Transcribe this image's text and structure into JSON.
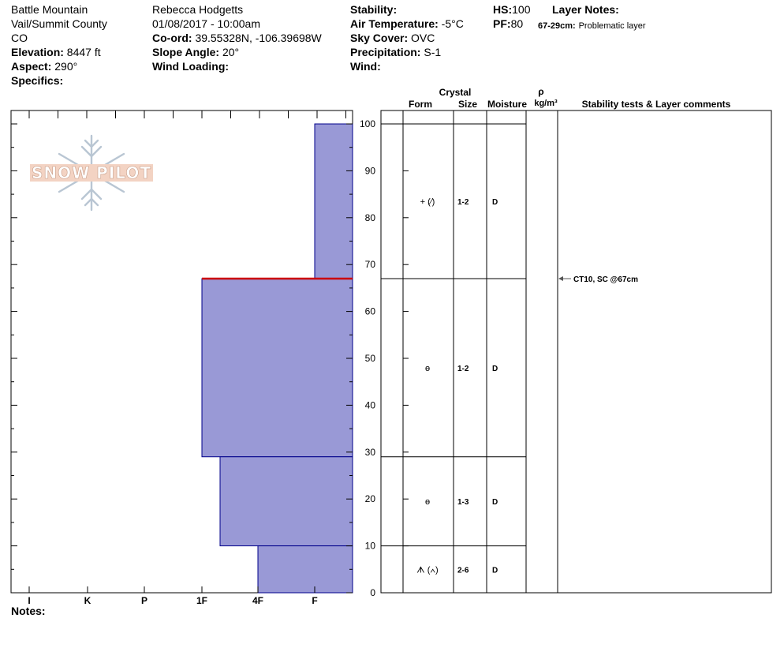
{
  "header": {
    "location": "Battle Mountain",
    "region": "Vail/Summit County",
    "state": "CO",
    "elevation_label": "Elevation:",
    "elevation_value": "8447 ft",
    "aspect_label": "Aspect:",
    "aspect_value": "290°",
    "specifics_label": "Specifics:",
    "observer": "Rebecca Hodgetts",
    "datetime": "01/08/2017 - 10:00am",
    "coord_label": "Co-ord:",
    "coord_value": "39.55328N, -106.39698W",
    "slope_label": "Slope Angle:",
    "slope_value": "20°",
    "wind_loading_label": "Wind Loading:",
    "stability_label": "Stability:",
    "air_temp_label": "Air Temperature:",
    "air_temp_value": "-5°C",
    "sky_cover_label": "Sky Cover:",
    "sky_cover_value": "OVC",
    "precip_label": "Precipitation:",
    "precip_value": "S-1",
    "wind_label": "Wind:",
    "hs_label": "HS:",
    "hs_value": "100",
    "pf_label": "PF:",
    "pf_value": "80",
    "layer_notes_label": "Layer Notes:",
    "layer_note_range": "67-29cm:",
    "layer_note_text": "Problematic layer"
  },
  "logo": {
    "text": "SNOW PILOT",
    "icon": "snowflake-icon"
  },
  "columns": {
    "crystal": "Crystal",
    "form": "Form",
    "size": "Size",
    "moisture": "Moisture",
    "rho": "ρ",
    "density_unit": "kg/m³",
    "stability": "Stability tests & Layer comments"
  },
  "notes_label": "Notes:",
  "colors": {
    "layer_fill": "#9999d6",
    "layer_stroke": "#00008b",
    "weak_layer": "#cc0000"
  },
  "chart_data": {
    "type": "snow-profile",
    "ylim": [
      0,
      100
    ],
    "y_ticks": [
      0,
      10,
      20,
      30,
      40,
      50,
      60,
      70,
      80,
      90,
      100
    ],
    "hardness_ticks": [
      "I",
      "K",
      "P",
      "1F",
      "4F",
      "F"
    ],
    "hardness_scale": "reversed",
    "layers": [
      {
        "bottom": 67,
        "top": 100,
        "hardness": "F",
        "form": "+ (⁄)",
        "size": "1-2",
        "moisture": "D"
      },
      {
        "bottom": 29,
        "top": 67,
        "hardness": "1F",
        "form": "ɵ",
        "size": "1-2",
        "moisture": "D"
      },
      {
        "bottom": 10,
        "top": 29,
        "hardness": "1F-",
        "form": "ɵ",
        "size": "1-3",
        "moisture": "D"
      },
      {
        "bottom": 0,
        "top": 10,
        "hardness": "4F",
        "form": "ᗑ (∧)",
        "size": "2-6",
        "moisture": "D"
      }
    ],
    "weak_layer_height": 67,
    "stability_tests": [
      {
        "height": 67,
        "label": "CT10, SC @67cm"
      }
    ]
  }
}
